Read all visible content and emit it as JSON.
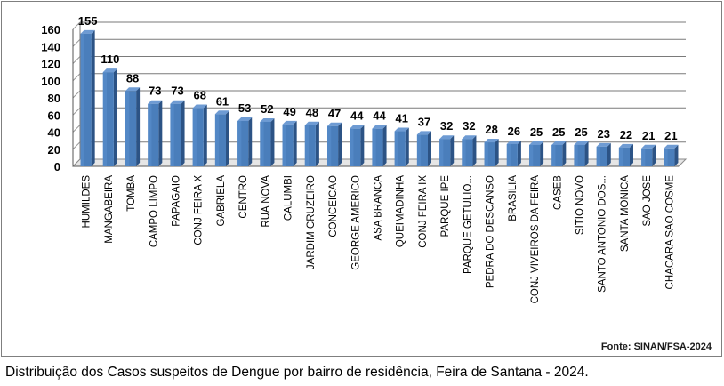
{
  "chart_data": {
    "type": "bar",
    "categories": [
      "HUMILDES",
      "MANGABEIRA",
      "TOMBA",
      "CAMPO LIMPO",
      "PAPAGAIO",
      "CONJ FEIRA X",
      "GABRIELA",
      "CENTRO",
      "RUA NOVA",
      "CALUMBI",
      "JARDIM CRUZEIRO",
      "CONCEICAO",
      "GEORGE AMERICO",
      "ASA BRANCA",
      "QUEIMADINHA",
      "CONJ FEIRA IX",
      "PARQUE IPE",
      "PARQUE GETULIO...",
      "PEDRA DO DESCANSO",
      "BRASILIA",
      "CONJ VIVEIROS DA FEIRA",
      "CASEB",
      "SITIO NOVO",
      "SANTO ANTONIO DOS...",
      "SANTA MONICA",
      "SAO JOSE",
      "CHACARA SAO COSME"
    ],
    "values": [
      155,
      110,
      88,
      73,
      73,
      68,
      61,
      53,
      52,
      49,
      48,
      47,
      44,
      44,
      41,
      37,
      32,
      32,
      28,
      26,
      25,
      25,
      25,
      23,
      22,
      21,
      21
    ],
    "ylim": [
      0,
      160
    ],
    "yticks": [
      "0",
      "20",
      "40",
      "60",
      "80",
      "100",
      "120",
      "140",
      "160"
    ],
    "grid": true,
    "bar_color": "#4a7ebb"
  },
  "source_note": "Fonte: SINAN/FSA-2024",
  "caption": "Distribuição dos Casos suspeitos de Dengue por bairro de residência, Feira de Santana - 2024."
}
